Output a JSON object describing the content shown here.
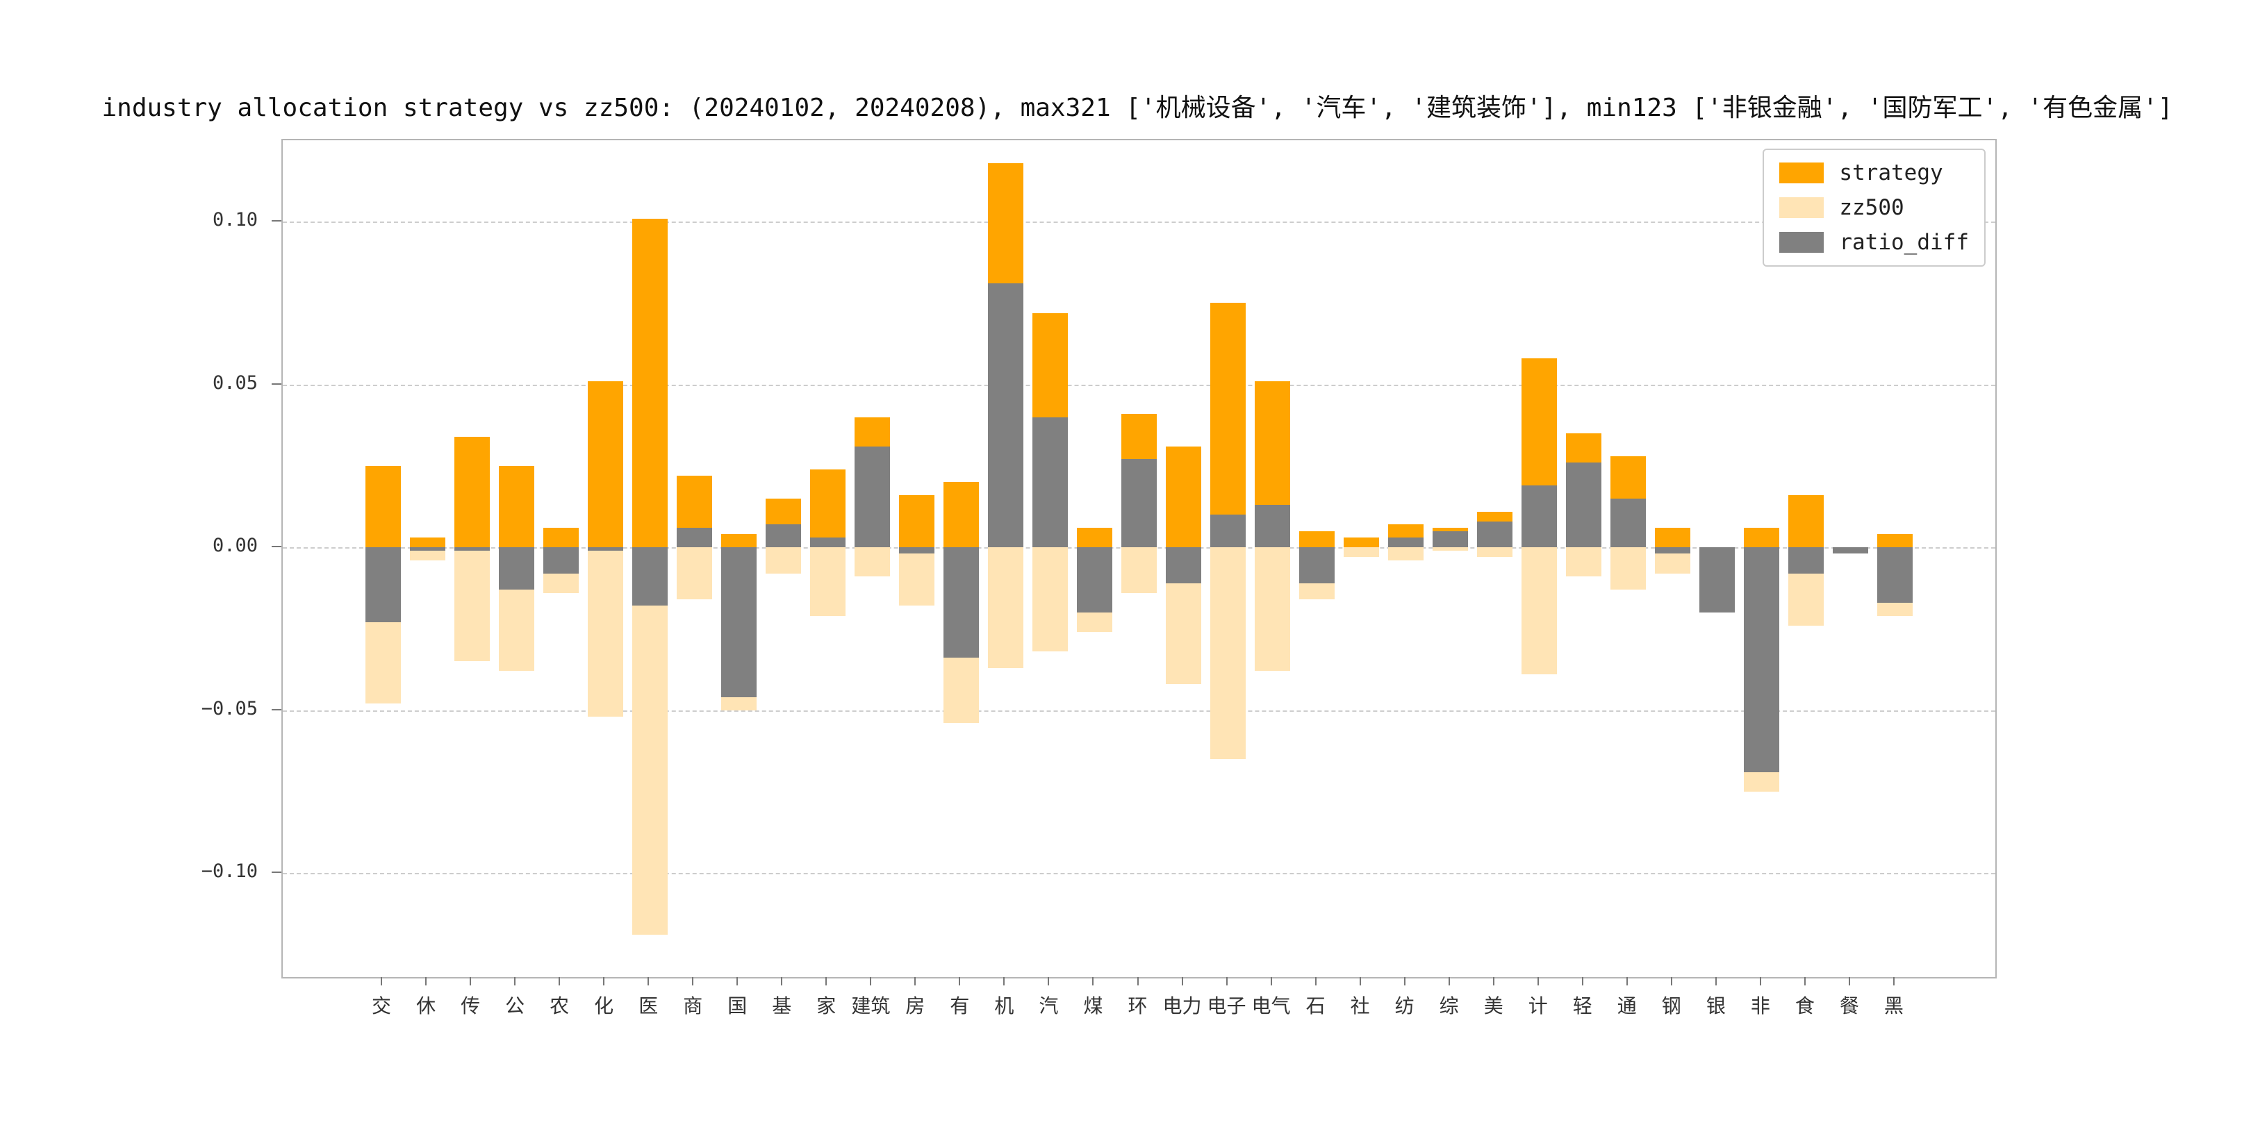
{
  "page": {
    "background": "#ffffff"
  },
  "chart_data": {
    "type": "bar",
    "title": "industry allocation strategy vs zz500: (20240102, 20240208), max321 ['机械设备', '汽车', '建筑装饰'], min123 ['非银金融', '国防军工', '有色金属']",
    "categories": [
      "交",
      "休",
      "传",
      "公",
      "农",
      "化",
      "医",
      "商",
      "国",
      "基",
      "家",
      "建筑",
      "房",
      "有",
      "机",
      "汽",
      "煤",
      "环",
      "电力",
      "电子",
      "电气",
      "石",
      "社",
      "纺",
      "综",
      "美",
      "计",
      "轻",
      "通",
      "钢",
      "银",
      "非",
      "食",
      "餐",
      "黑"
    ],
    "series": [
      {
        "name": "strategy",
        "color": "#FFA500",
        "values": [
          0.025,
          0.003,
          0.034,
          0.025,
          0.006,
          0.051,
          0.101,
          0.022,
          0.004,
          0.015,
          0.024,
          0.04,
          0.016,
          0.02,
          0.118,
          0.072,
          0.006,
          0.041,
          0.031,
          0.075,
          0.051,
          0.005,
          0.003,
          0.007,
          0.006,
          0.011,
          0.058,
          0.035,
          0.028,
          0.006,
          0.0,
          0.006,
          0.016,
          0.0,
          0.004
        ]
      },
      {
        "name": "zz500",
        "color": "#FFE4B5",
        "values": [
          -0.048,
          -0.004,
          -0.035,
          -0.038,
          -0.014,
          -0.052,
          -0.119,
          -0.016,
          -0.05,
          -0.008,
          -0.021,
          -0.009,
          -0.018,
          -0.054,
          -0.037,
          -0.032,
          -0.026,
          -0.014,
          -0.042,
          -0.065,
          -0.038,
          -0.016,
          -0.003,
          -0.004,
          -0.001,
          -0.003,
          -0.039,
          -0.009,
          -0.013,
          -0.008,
          -0.02,
          -0.075,
          -0.024,
          -0.002,
          -0.021
        ]
      },
      {
        "name": "ratio_diff",
        "color": "#808080",
        "values": [
          -0.023,
          -0.001,
          -0.001,
          -0.013,
          -0.008,
          -0.001,
          -0.018,
          0.006,
          -0.046,
          0.007,
          0.003,
          0.031,
          -0.002,
          -0.034,
          0.081,
          0.04,
          -0.02,
          0.027,
          -0.011,
          0.01,
          0.013,
          -0.011,
          0.0,
          0.003,
          0.005,
          0.008,
          0.019,
          0.026,
          0.015,
          -0.002,
          -0.02,
          -0.069,
          -0.008,
          -0.002,
          -0.017
        ]
      }
    ],
    "zz500_plotted_inverted": true,
    "ylim": [
      -0.132,
      0.125
    ],
    "xlim": [
      -2.25,
      36.25
    ],
    "yticks": [
      {
        "value": 0.1,
        "label": "0.10"
      },
      {
        "value": 0.05,
        "label": "0.05"
      },
      {
        "value": 0.0,
        "label": "0.00"
      },
      {
        "value": -0.05,
        "label": "−0.05"
      },
      {
        "value": -0.1,
        "label": "−0.10"
      }
    ],
    "grid": "horizontal dashed",
    "legend": {
      "position": "upper right",
      "entries": [
        "strategy",
        "zz500",
        "ratio_diff"
      ]
    }
  }
}
